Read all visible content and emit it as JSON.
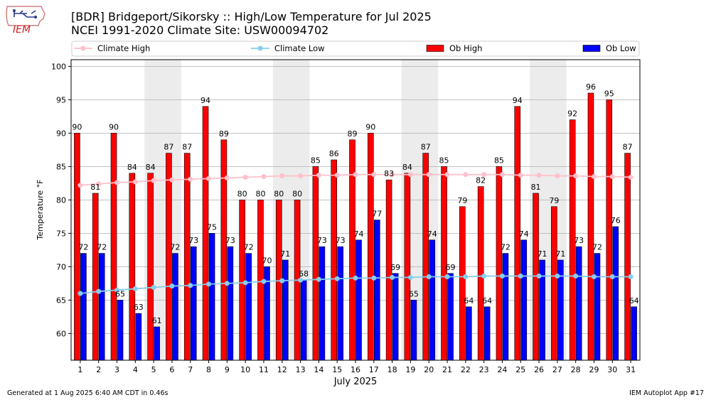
{
  "header": {
    "title_line1": "[BDR] Bridgeport/Sikorsky :: High/Low Temperature for Jul 2025",
    "title_line2": "NCEI 1991-2020 Climate Site: USW00094702"
  },
  "logo": {
    "text": "IEM"
  },
  "footer": {
    "left": "Generated at 1 Aug 2025 6:40 AM CDT in 0.46s",
    "right": "IEM Autoplot App #17"
  },
  "colors": {
    "ob_high": "#ff0000",
    "ob_low": "#0000ff",
    "climate_high": "#ffc0cb",
    "climate_low": "#87ceeb",
    "weekend_band": "#ececec",
    "grid": "#b0b0b0"
  },
  "chart_data": {
    "type": "bar",
    "xlabel": "July 2025",
    "ylabel": "Temperature °F",
    "ylim": [
      56,
      101
    ],
    "yticks": [
      60,
      65,
      70,
      75,
      80,
      85,
      90,
      95,
      100
    ],
    "grid": true,
    "legend_placement": "top",
    "categories": [
      "1",
      "2",
      "3",
      "4",
      "5",
      "6",
      "7",
      "8",
      "9",
      "10",
      "11",
      "12",
      "13",
      "14",
      "15",
      "16",
      "17",
      "18",
      "19",
      "20",
      "21",
      "22",
      "23",
      "24",
      "25",
      "26",
      "27",
      "28",
      "29",
      "30",
      "31"
    ],
    "shaded_days": [
      [
        5,
        6
      ],
      [
        12,
        13
      ],
      [
        19,
        20
      ],
      [
        26,
        27
      ]
    ],
    "series": [
      {
        "name": "Ob High",
        "type": "bar",
        "values": [
          90,
          81,
          90,
          84,
          84,
          87,
          87,
          94,
          89,
          80,
          80,
          80,
          80,
          85,
          86,
          89,
          90,
          83,
          84,
          87,
          85,
          79,
          82,
          85,
          94,
          81,
          79,
          92,
          96,
          95,
          87
        ]
      },
      {
        "name": "Ob Low",
        "type": "bar",
        "values": [
          72,
          72,
          65,
          63,
          61,
          72,
          73,
          75,
          73,
          72,
          70,
          71,
          68,
          73,
          73,
          74,
          77,
          69,
          65,
          74,
          69,
          64,
          64,
          72,
          74,
          71,
          71,
          73,
          72,
          76,
          64
        ]
      },
      {
        "name": "Climate High",
        "type": "line",
        "values": [
          82.2,
          82.4,
          82.6,
          82.7,
          82.9,
          83.0,
          83.1,
          83.2,
          83.3,
          83.4,
          83.5,
          83.6,
          83.6,
          83.7,
          83.7,
          83.8,
          83.8,
          83.8,
          83.8,
          83.8,
          83.8,
          83.8,
          83.8,
          83.8,
          83.7,
          83.7,
          83.6,
          83.6,
          83.5,
          83.5,
          83.4
        ]
      },
      {
        "name": "Climate Low",
        "type": "line",
        "values": [
          66.0,
          66.3,
          66.5,
          66.7,
          66.9,
          67.1,
          67.2,
          67.4,
          67.5,
          67.6,
          67.8,
          67.9,
          68.0,
          68.1,
          68.2,
          68.3,
          68.3,
          68.4,
          68.4,
          68.5,
          68.5,
          68.5,
          68.6,
          68.6,
          68.6,
          68.6,
          68.6,
          68.6,
          68.5,
          68.5,
          68.5
        ]
      }
    ]
  }
}
